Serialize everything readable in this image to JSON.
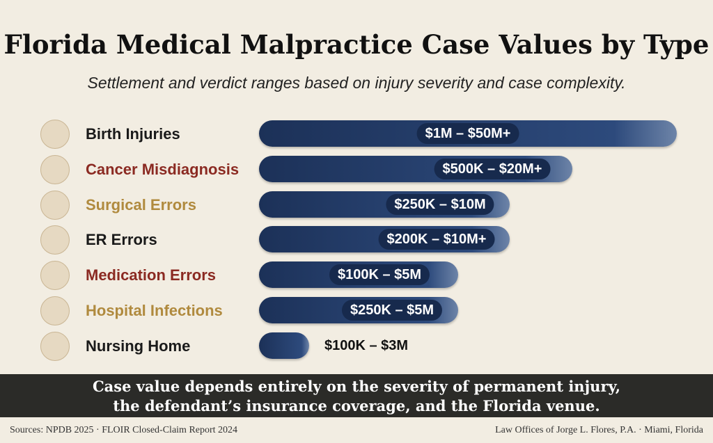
{
  "header": {
    "title": "Florida Medical Malpractice Case Values by Type",
    "subtitle": "Settlement and verdict ranges based on injury severity and case complexity."
  },
  "rows": [
    {
      "label": "Birth Injuries",
      "range": "$1M – $50M+",
      "color": "#1a1a1a"
    },
    {
      "label": "Cancer Misdiagnosis",
      "range": "$500K – $20M+",
      "color": "#8b2a22"
    },
    {
      "label": "Surgical Errors",
      "range": "$250K – $10M",
      "color": "#b08a3e"
    },
    {
      "label": "ER Errors",
      "range": "$200K – $10M+",
      "color": "#1a1a1a"
    },
    {
      "label": "Medication Errors",
      "range": "$100K – $5M",
      "color": "#8b2a22"
    },
    {
      "label": "Hospital Infections",
      "range": "$250K – $5M",
      "color": "#b08a3e"
    },
    {
      "label": "Nursing Home",
      "range": "$100K – $3M",
      "color": "#1a1a1a"
    }
  ],
  "footer": {
    "note_line1": "Case value depends entirely on the severity of permanent injury,",
    "note_line2": "the defendant’s insurance coverage, and the Florida venue.",
    "sources": "Sources: NPDB 2025 · FLOIR Closed-Claim Report 2024",
    "credit": "Law Offices of Jorge L. Flores, P.A. · Miami, Florida"
  }
}
